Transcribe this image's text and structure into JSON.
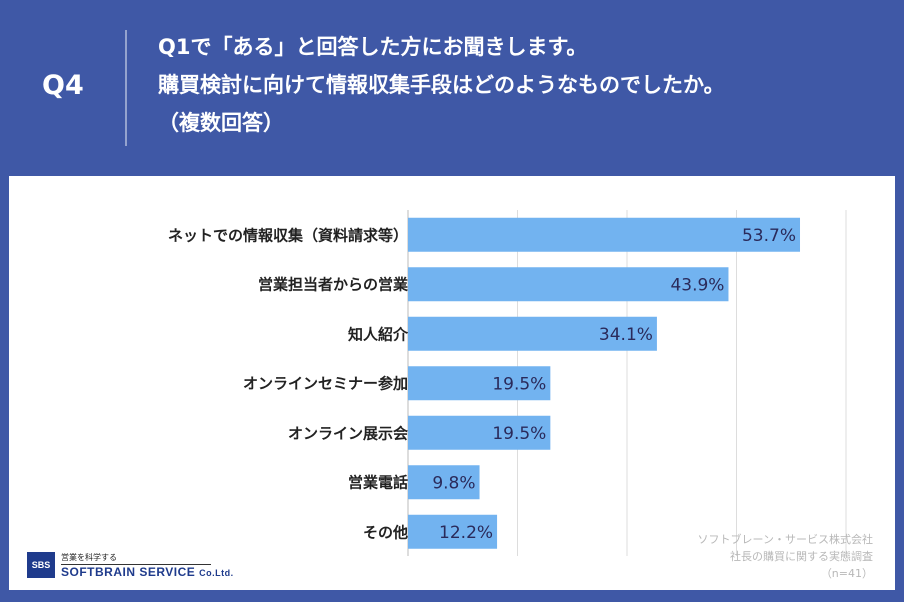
{
  "header": {
    "question_number": "Q4",
    "line1": "Q1で「ある」と回答した方にお聞きします。",
    "line2": "購買検討に向けて情報収集手段はどのようなものでしたか。",
    "line3": "（複数回答）"
  },
  "colors": {
    "background": "#3f58a6",
    "bar": "#72b3f0",
    "grid": "#dddddd"
  },
  "chart_data": {
    "type": "bar",
    "orientation": "horizontal",
    "categories": [
      "ネットでの情報収集（資料請求等）",
      "営業担当者からの営業",
      "知人紹介",
      "オンラインセミナー参加",
      "オンライン展示会",
      "営業電話",
      "その他"
    ],
    "values": [
      53.7,
      43.9,
      34.1,
      19.5,
      19.5,
      9.8,
      12.2
    ],
    "data_labels": [
      "53.7%",
      "43.9%",
      "34.1%",
      "19.5%",
      "19.5%",
      "9.8%",
      "12.2%"
    ],
    "xlim": [
      0,
      60
    ],
    "grid": true
  },
  "source": {
    "line1": "ソフトブレーン・サービス株式会社",
    "line2": "社長の購買に関する実態調査",
    "line3": "（n=41）"
  },
  "logo": {
    "mark": "SBS",
    "tagline": "営業を科学する",
    "name": "SOFTBRAIN SERVICE",
    "suffix": "Co.Ltd."
  }
}
